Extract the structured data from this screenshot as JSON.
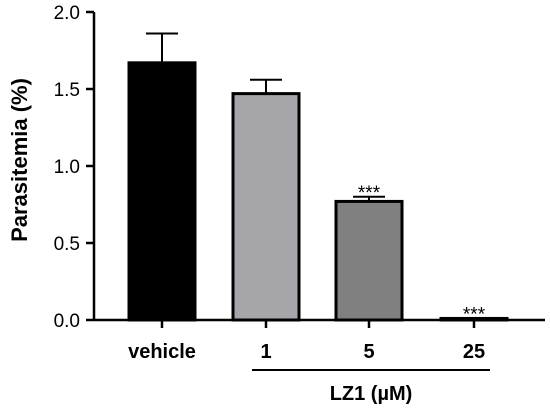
{
  "chart_data": {
    "type": "bar",
    "categories": [
      "vehicle",
      "1",
      "5",
      "25"
    ],
    "values": [
      1.67,
      1.47,
      0.77,
      0.01
    ],
    "errors": [
      0.19,
      0.09,
      0.03,
      0.0
    ],
    "bar_colors": [
      "#000000",
      "#a6a6aa",
      "#808080",
      "#b0b0b0"
    ],
    "annotations": [
      "",
      "",
      "***",
      "***"
    ],
    "ylabel": "Parasitemia (%)",
    "yticks": [
      "0.0",
      "0.5",
      "1.0",
      "1.5",
      "2.0"
    ],
    "ylim": [
      0,
      2.0
    ],
    "group_label": "LZ1 (µM)",
    "group_span": [
      "1",
      "25"
    ],
    "grid": false,
    "legend": "none"
  }
}
